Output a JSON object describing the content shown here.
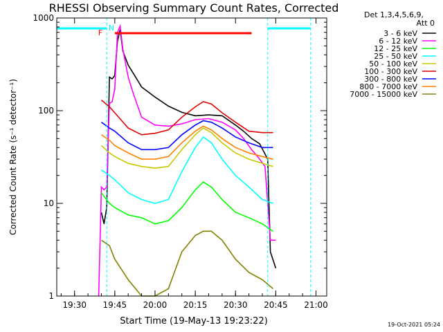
{
  "chart_data": {
    "type": "line",
    "title": "RHESSI Observing Summary Count Rates, Corrected",
    "ylabel": "Corrected Count Rate (s⁻¹ detector⁻¹)",
    "xlabel": "Start Time (19-May-13 19:23:22)",
    "footer": "19-Oct-2021 05:24",
    "x_unit": "minutes",
    "xlim": [
      "19:23:22",
      "21:04"
    ],
    "x_ticks": [
      "19:30",
      "19:45",
      "20:00",
      "20:15",
      "20:30",
      "20:45",
      "21:00"
    ],
    "yscale": "log",
    "ylim": [
      1,
      1000
    ],
    "y_ticks": [
      "1",
      "10",
      "100",
      "1000"
    ],
    "legend": {
      "position": "top-right",
      "header": [
        "Det 1,3,4,5,6,9,",
        "Att 0"
      ]
    },
    "markers": [
      {
        "label": "F",
        "color": "#ff0000"
      },
      {
        "label": "N",
        "color": "#00ffff"
      }
    ],
    "series": [
      {
        "name": "3 - 6 keV",
        "color": "#000000",
        "points": [
          [
            "19:40",
            8
          ],
          [
            "19:41",
            6
          ],
          [
            "19:42",
            9
          ],
          [
            "19:43",
            230
          ],
          [
            "19:44",
            220
          ],
          [
            "19:45",
            240
          ],
          [
            "19:46",
            560
          ],
          [
            "19:47",
            750
          ],
          [
            "19:48",
            440
          ],
          [
            "19:50",
            310
          ],
          [
            "19:52",
            250
          ],
          [
            "19:55",
            180
          ],
          [
            "20:00",
            140
          ],
          [
            "20:05",
            112
          ],
          [
            "20:10",
            96
          ],
          [
            "20:15",
            88
          ],
          [
            "20:20",
            90
          ],
          [
            "20:25",
            88
          ],
          [
            "20:30",
            70
          ],
          [
            "20:33",
            60
          ],
          [
            "20:36",
            50
          ],
          [
            "20:39",
            44
          ],
          [
            "20:42",
            30
          ],
          [
            "20:43",
            3
          ],
          [
            "20:45",
            2
          ]
        ]
      },
      {
        "name": "6 - 12 keV",
        "color": "#ff00ff",
        "points": [
          [
            "19:39",
            1
          ],
          [
            "19:40",
            15
          ],
          [
            "19:41",
            14
          ],
          [
            "19:42",
            15
          ],
          [
            "19:43",
            120
          ],
          [
            "19:44",
            125
          ],
          [
            "19:45",
            170
          ],
          [
            "19:46",
            700
          ],
          [
            "19:47",
            820
          ],
          [
            "19:48",
            460
          ],
          [
            "19:50",
            230
          ],
          [
            "19:52",
            150
          ],
          [
            "19:55",
            85
          ],
          [
            "20:00",
            70
          ],
          [
            "20:05",
            68
          ],
          [
            "20:10",
            72
          ],
          [
            "20:15",
            80
          ],
          [
            "20:20",
            82
          ],
          [
            "20:25",
            75
          ],
          [
            "20:30",
            62
          ],
          [
            "20:33",
            50
          ],
          [
            "20:36",
            38
          ],
          [
            "20:39",
            30
          ],
          [
            "20:41",
            25
          ],
          [
            "20:43",
            4
          ],
          [
            "20:45",
            4
          ]
        ]
      },
      {
        "name": "12 - 25 keV",
        "color": "#00ff00",
        "points": [
          [
            "19:40",
            13
          ],
          [
            "19:43",
            10
          ],
          [
            "19:45",
            9
          ],
          [
            "19:50",
            7.5
          ],
          [
            "19:55",
            7
          ],
          [
            "20:00",
            6
          ],
          [
            "20:05",
            6.5
          ],
          [
            "20:10",
            9
          ],
          [
            "20:15",
            14
          ],
          [
            "20:18",
            17
          ],
          [
            "20:21",
            15
          ],
          [
            "20:25",
            11
          ],
          [
            "20:30",
            8
          ],
          [
            "20:35",
            7
          ],
          [
            "20:40",
            6
          ],
          [
            "20:44",
            5
          ]
        ]
      },
      {
        "name": "25 - 50 keV",
        "color": "#00ffff",
        "points": [
          [
            "19:40",
            23
          ],
          [
            "19:43",
            20
          ],
          [
            "19:45",
            18
          ],
          [
            "19:50",
            13
          ],
          [
            "19:55",
            11
          ],
          [
            "20:00",
            10
          ],
          [
            "20:05",
            11
          ],
          [
            "20:10",
            22
          ],
          [
            "20:15",
            40
          ],
          [
            "20:18",
            52
          ],
          [
            "20:21",
            45
          ],
          [
            "20:25",
            30
          ],
          [
            "20:30",
            20
          ],
          [
            "20:35",
            15
          ],
          [
            "20:40",
            11
          ],
          [
            "20:44",
            10
          ]
        ]
      },
      {
        "name": "50 - 100 keV",
        "color": "#c8c800",
        "points": [
          [
            "19:40",
            42
          ],
          [
            "19:43",
            35
          ],
          [
            "19:45",
            32
          ],
          [
            "19:50",
            27
          ],
          [
            "19:55",
            25
          ],
          [
            "20:00",
            24
          ],
          [
            "20:05",
            25
          ],
          [
            "20:10",
            38
          ],
          [
            "20:15",
            55
          ],
          [
            "20:18",
            65
          ],
          [
            "20:21",
            58
          ],
          [
            "20:25",
            45
          ],
          [
            "20:30",
            35
          ],
          [
            "20:35",
            30
          ],
          [
            "20:40",
            27
          ],
          [
            "20:44",
            25
          ]
        ]
      },
      {
        "name": "100 - 300 keV",
        "color": "#e00000",
        "points": [
          [
            "19:40",
            130
          ],
          [
            "19:43",
            110
          ],
          [
            "19:45",
            95
          ],
          [
            "19:50",
            65
          ],
          [
            "19:55",
            55
          ],
          [
            "20:00",
            57
          ],
          [
            "20:05",
            62
          ],
          [
            "20:10",
            85
          ],
          [
            "20:15",
            110
          ],
          [
            "20:18",
            125
          ],
          [
            "20:21",
            118
          ],
          [
            "20:25",
            95
          ],
          [
            "20:30",
            75
          ],
          [
            "20:35",
            60
          ],
          [
            "20:40",
            58
          ],
          [
            "20:44",
            58
          ]
        ]
      },
      {
        "name": "300 - 800 keV",
        "color": "#0000ff",
        "points": [
          [
            "19:40",
            75
          ],
          [
            "19:43",
            65
          ],
          [
            "19:45",
            60
          ],
          [
            "19:50",
            45
          ],
          [
            "19:55",
            38
          ],
          [
            "20:00",
            38
          ],
          [
            "20:05",
            40
          ],
          [
            "20:10",
            55
          ],
          [
            "20:15",
            70
          ],
          [
            "20:18",
            78
          ],
          [
            "20:21",
            75
          ],
          [
            "20:25",
            65
          ],
          [
            "20:30",
            52
          ],
          [
            "20:35",
            45
          ],
          [
            "20:40",
            40
          ],
          [
            "20:44",
            40
          ]
        ]
      },
      {
        "name": "800 - 7000 keV",
        "color": "#ff8000",
        "points": [
          [
            "19:40",
            55
          ],
          [
            "19:43",
            48
          ],
          [
            "19:45",
            42
          ],
          [
            "19:50",
            35
          ],
          [
            "19:55",
            30
          ],
          [
            "20:00",
            30
          ],
          [
            "20:05",
            32
          ],
          [
            "20:10",
            45
          ],
          [
            "20:15",
            60
          ],
          [
            "20:18",
            68
          ],
          [
            "20:21",
            62
          ],
          [
            "20:25",
            50
          ],
          [
            "20:30",
            40
          ],
          [
            "20:35",
            35
          ],
          [
            "20:40",
            32
          ],
          [
            "20:44",
            30
          ]
        ]
      },
      {
        "name": "7000 - 15000 keV",
        "color": "#808000",
        "points": [
          [
            "19:40",
            4
          ],
          [
            "19:43",
            3.5
          ],
          [
            "19:45",
            2.5
          ],
          [
            "19:50",
            1.5
          ],
          [
            "19:55",
            1
          ],
          [
            "20:00",
            1
          ],
          [
            "20:05",
            1.2
          ],
          [
            "20:10",
            3
          ],
          [
            "20:15",
            4.5
          ],
          [
            "20:18",
            5
          ],
          [
            "20:21",
            5
          ],
          [
            "20:25",
            4
          ],
          [
            "20:30",
            2.5
          ],
          [
            "20:35",
            1.8
          ],
          [
            "20:40",
            1.5
          ],
          [
            "20:44",
            1.2
          ]
        ]
      }
    ]
  }
}
